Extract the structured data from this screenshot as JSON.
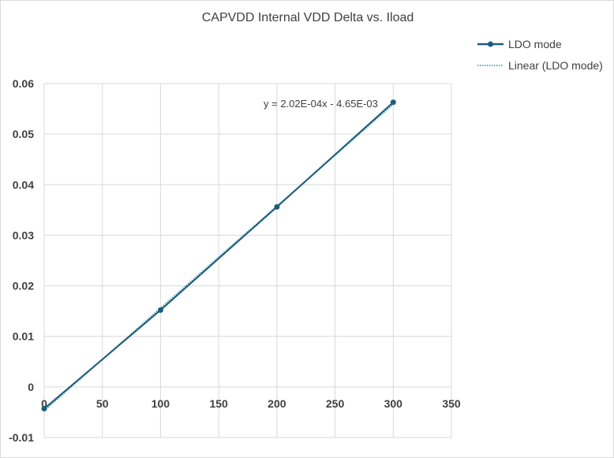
{
  "chart_data": {
    "type": "line",
    "title": "CAPVDD Internal VDD Delta vs. Iload",
    "xlabel": "",
    "ylabel": "",
    "x_ticks": [
      "0",
      "50",
      "100",
      "150",
      "200",
      "250",
      "300",
      "350"
    ],
    "y_ticks": [
      "-0.01",
      "0",
      "0.01",
      "0.02",
      "0.03",
      "0.04",
      "0.05",
      "0.06"
    ],
    "xlim": [
      0,
      350
    ],
    "ylim": [
      -0.01,
      0.06
    ],
    "grid": true,
    "legend_position": "top-right",
    "series": [
      {
        "name": "LDO mode",
        "x": [
          0,
          100,
          200,
          300
        ],
        "y": [
          -0.0043,
          0.0152,
          0.0356,
          0.0563
        ],
        "color": "#1f5b7a"
      }
    ],
    "trendline": {
      "name": "Linear (LDO mode)",
      "slope": 0.000202,
      "intercept": -0.00465,
      "color": "#2a8aa0",
      "equation": "y = 2.02E-04x - 4.65E-03"
    }
  }
}
